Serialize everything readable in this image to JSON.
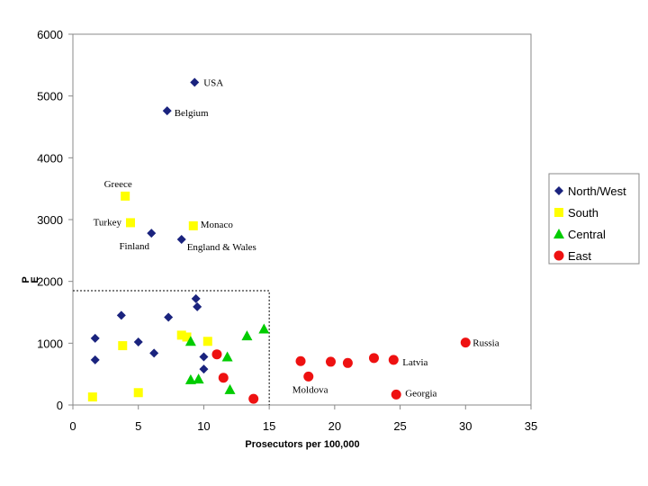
{
  "chart_data": {
    "type": "scatter",
    "title": "",
    "xlabel": "Prosecutors per 100,000",
    "ylabel": "P",
    "ylabel_sub": "E",
    "xlim": [
      0,
      35
    ],
    "ylim": [
      0,
      6000
    ],
    "xticks": [
      0,
      5,
      10,
      15,
      20,
      25,
      30,
      35
    ],
    "yticks": [
      0,
      1000,
      2000,
      3000,
      4000,
      5000,
      6000
    ],
    "grid": false,
    "legend_position": "right",
    "reference_box": {
      "x": [
        0,
        15
      ],
      "y": [
        0,
        1850
      ]
    },
    "series": [
      {
        "name": "North/West",
        "marker": "diamond",
        "color": "#1a237e",
        "points": [
          {
            "x": 9.3,
            "y": 5220,
            "label": "USA"
          },
          {
            "x": 7.2,
            "y": 4760,
            "label": "Belgium"
          },
          {
            "x": 6.0,
            "y": 2780,
            "label": "Finland"
          },
          {
            "x": 8.3,
            "y": 2680,
            "label": "England & Wales"
          },
          {
            "x": 1.7,
            "y": 1080,
            "label": ""
          },
          {
            "x": 1.7,
            "y": 730,
            "label": ""
          },
          {
            "x": 3.7,
            "y": 1450,
            "label": ""
          },
          {
            "x": 5.0,
            "y": 1020,
            "label": ""
          },
          {
            "x": 6.2,
            "y": 840,
            "label": ""
          },
          {
            "x": 7.3,
            "y": 1420,
            "label": ""
          },
          {
            "x": 9.4,
            "y": 1720,
            "label": ""
          },
          {
            "x": 9.5,
            "y": 1590,
            "label": ""
          },
          {
            "x": 10.0,
            "y": 780,
            "label": ""
          },
          {
            "x": 10.0,
            "y": 580,
            "label": ""
          }
        ]
      },
      {
        "name": "South",
        "marker": "square",
        "color": "#ffff00",
        "points": [
          {
            "x": 4.0,
            "y": 3380,
            "label": "Greece"
          },
          {
            "x": 4.4,
            "y": 2950,
            "label": "Turkey"
          },
          {
            "x": 9.2,
            "y": 2900,
            "label": "Monaco"
          },
          {
            "x": 1.5,
            "y": 130,
            "label": ""
          },
          {
            "x": 3.8,
            "y": 960,
            "label": ""
          },
          {
            "x": 5.0,
            "y": 200,
            "label": ""
          },
          {
            "x": 8.3,
            "y": 1130,
            "label": ""
          },
          {
            "x": 8.7,
            "y": 1100,
            "label": ""
          },
          {
            "x": 10.3,
            "y": 1030,
            "label": ""
          }
        ]
      },
      {
        "name": "Central",
        "marker": "triangle",
        "color": "#00cc00",
        "points": [
          {
            "x": 9.0,
            "y": 1030,
            "label": ""
          },
          {
            "x": 9.0,
            "y": 410,
            "label": ""
          },
          {
            "x": 9.6,
            "y": 420,
            "label": ""
          },
          {
            "x": 11.8,
            "y": 780,
            "label": ""
          },
          {
            "x": 12.0,
            "y": 250,
            "label": ""
          },
          {
            "x": 13.3,
            "y": 1120,
            "label": ""
          },
          {
            "x": 14.6,
            "y": 1230,
            "label": ""
          }
        ]
      },
      {
        "name": "East",
        "marker": "circle",
        "color": "#ee1111",
        "points": [
          {
            "x": 11.0,
            "y": 820,
            "label": ""
          },
          {
            "x": 11.5,
            "y": 440,
            "label": ""
          },
          {
            "x": 13.8,
            "y": 100,
            "label": ""
          },
          {
            "x": 17.4,
            "y": 710,
            "label": ""
          },
          {
            "x": 18.0,
            "y": 460,
            "label": "Moldova"
          },
          {
            "x": 19.7,
            "y": 700,
            "label": ""
          },
          {
            "x": 21.0,
            "y": 680,
            "label": ""
          },
          {
            "x": 23.0,
            "y": 760,
            "label": ""
          },
          {
            "x": 24.5,
            "y": 730,
            "label": "Latvia"
          },
          {
            "x": 24.7,
            "y": 170,
            "label": "Georgia"
          },
          {
            "x": 30.0,
            "y": 1010,
            "label": "Russia"
          }
        ]
      }
    ]
  }
}
